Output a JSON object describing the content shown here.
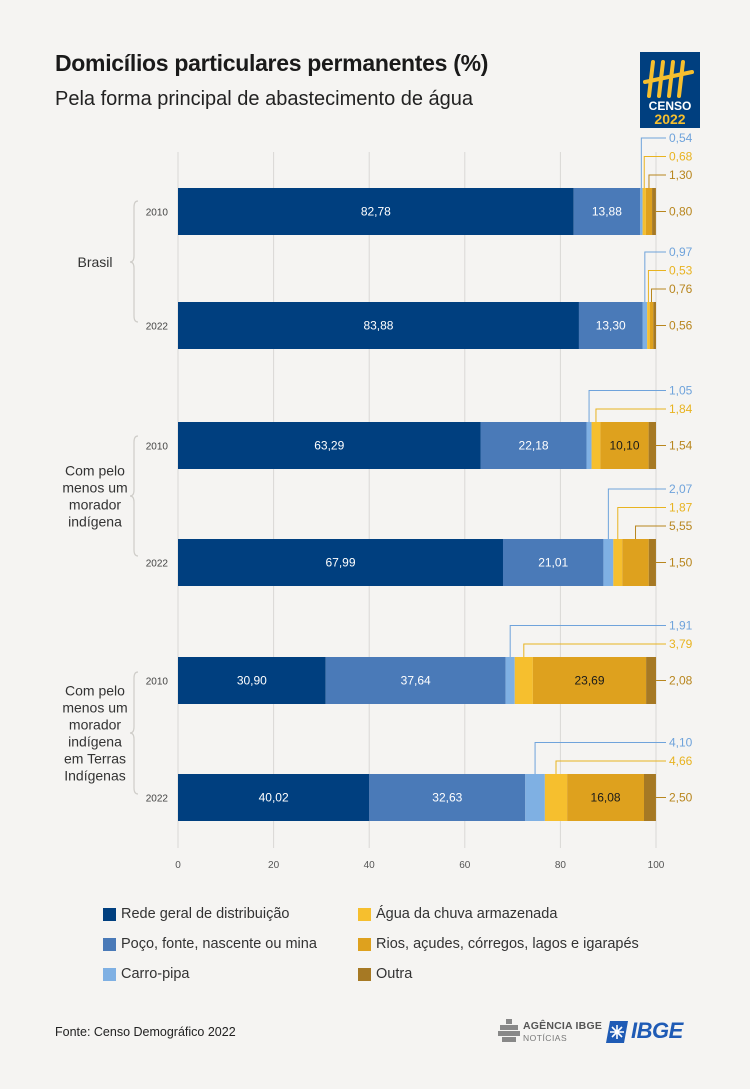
{
  "header": {
    "title": "Domicílios particulares permanentes (%)",
    "subtitle": "Pela forma principal de abastecimento de água",
    "logo_text_top": "CENSO",
    "logo_text_bottom": "2022"
  },
  "chart_data": {
    "type": "bar",
    "orientation": "horizontal",
    "stacked": true,
    "xlim": [
      0,
      100
    ],
    "x_ticks": [
      "0",
      "20",
      "40",
      "60",
      "80",
      "100"
    ],
    "groups": [
      {
        "label_lines": [
          "Brasil"
        ],
        "rows": [
          "2010",
          "2022"
        ]
      },
      {
        "label_lines": [
          "Com pelo",
          "menos um",
          "morador",
          "indígena"
        ],
        "rows": [
          "2010",
          "2022"
        ]
      },
      {
        "label_lines": [
          "Com pelo",
          "menos um",
          "morador",
          "indígena",
          "em Terras",
          "Indígenas"
        ],
        "rows": [
          "2010",
          "2022"
        ]
      }
    ],
    "series": [
      {
        "name": "Rede geral de distribuição",
        "color": "#003f7f"
      },
      {
        "name": "Poço, fonte, nascente ou mina",
        "color": "#4a7ab8"
      },
      {
        "name": "Carro-pipa",
        "color": "#7fb0e3"
      },
      {
        "name": "Água da chuva armazenada",
        "color": "#f6bf2e"
      },
      {
        "name": "Rios, açudes, córregos, lagos e igarapés",
        "color": "#dea11e"
      },
      {
        "name": "Outra",
        "color": "#a67924"
      }
    ],
    "bars": [
      {
        "group": 0,
        "year": "2010",
        "values": [
          82.78,
          13.88,
          0.54,
          0.68,
          1.3,
          0.8
        ],
        "labels": [
          "82,78",
          "13,88",
          "0,54",
          "0,68",
          "1,30",
          "0,80"
        ]
      },
      {
        "group": 0,
        "year": "2022",
        "values": [
          83.88,
          13.3,
          0.97,
          0.53,
          0.76,
          0.56
        ],
        "labels": [
          "83,88",
          "13,30",
          "0,97",
          "0,53",
          "0,76",
          "0,56"
        ]
      },
      {
        "group": 1,
        "year": "2010",
        "values": [
          63.29,
          22.18,
          1.05,
          1.84,
          10.1,
          1.54
        ],
        "labels": [
          "63,29",
          "22,18",
          "1,05",
          "1,84",
          "10,10",
          "1,54"
        ]
      },
      {
        "group": 1,
        "year": "2022",
        "values": [
          67.99,
          21.01,
          2.07,
          1.87,
          5.55,
          1.5
        ],
        "labels": [
          "67,99",
          "21,01",
          "2,07",
          "1,87",
          "5,55",
          "1,50"
        ]
      },
      {
        "group": 2,
        "year": "2010",
        "values": [
          30.9,
          37.64,
          1.91,
          3.79,
          23.69,
          2.08
        ],
        "labels": [
          "30,90",
          "37,64",
          "1,91",
          "3,79",
          "23,69",
          "2,08"
        ]
      },
      {
        "group": 2,
        "year": "2022",
        "values": [
          40.02,
          32.63,
          4.1,
          4.66,
          16.08,
          2.5
        ],
        "labels": [
          "40,02",
          "32,63",
          "4,10",
          "4,66",
          "16,08",
          "2,50"
        ]
      }
    ]
  },
  "footer": {
    "source": "Fonte: Censo Demográfico 2022",
    "agencia_name": "AGÊNCIA IBGE",
    "agencia_sub": "NOTÍCIAS",
    "ibge_name": "IBGE"
  }
}
